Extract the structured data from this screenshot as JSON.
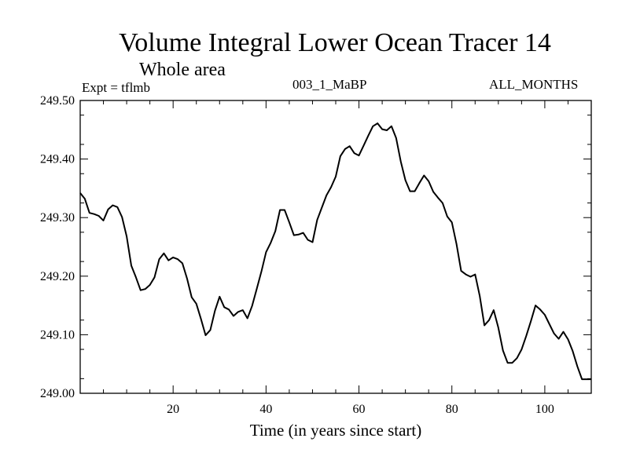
{
  "chart_data": {
    "type": "line",
    "title": "Volume Integral Lower Ocean Tracer 14",
    "subtitle": "Whole area",
    "expt_label": "Expt = tflmb",
    "run_label": "003_1_MaBP",
    "months_label": "ALL_MONTHS",
    "xlabel": "Time (in years since start)",
    "ylabel": "",
    "xlim": [
      0,
      110
    ],
    "ylim": [
      249.0,
      249.5
    ],
    "xticks": [
      20,
      40,
      60,
      80,
      100
    ],
    "yticks": [
      249.0,
      249.1,
      249.2,
      249.3,
      249.4,
      249.5
    ],
    "ytick_labels": [
      "249.00",
      "249.10",
      "249.20",
      "249.30",
      "249.40",
      "249.50"
    ],
    "grid": false,
    "series": [
      {
        "name": "tflmb",
        "x": [
          0,
          1,
          2,
          3,
          4,
          5,
          6,
          7,
          8,
          9,
          10,
          11,
          12,
          13,
          14,
          15,
          16,
          17,
          18,
          19,
          20,
          21,
          22,
          23,
          24,
          25,
          26,
          27,
          28,
          29,
          30,
          31,
          32,
          33,
          34,
          35,
          36,
          37,
          38,
          39,
          40,
          41,
          42,
          43,
          44,
          45,
          46,
          47,
          48,
          49,
          50,
          51,
          52,
          53,
          54,
          55,
          56,
          57,
          58,
          59,
          60,
          61,
          62,
          63,
          64,
          65,
          66,
          67,
          68,
          69,
          70,
          71,
          72,
          73,
          74,
          75,
          76,
          77,
          78,
          79,
          80,
          81,
          82,
          83,
          84,
          85,
          86,
          87,
          88,
          89,
          90,
          91,
          92,
          93,
          94,
          95,
          96,
          97,
          98,
          99,
          100,
          101,
          102,
          103,
          104,
          105,
          106,
          107,
          108,
          109,
          110
        ],
        "values": [
          249.342,
          249.332,
          249.308,
          249.306,
          249.303,
          249.295,
          249.314,
          249.321,
          249.318,
          249.301,
          249.268,
          249.218,
          249.198,
          249.176,
          249.178,
          249.185,
          249.198,
          249.229,
          249.239,
          249.227,
          249.232,
          249.229,
          249.222,
          249.196,
          249.164,
          249.153,
          249.127,
          249.099,
          249.108,
          249.141,
          249.165,
          249.147,
          249.143,
          249.132,
          249.139,
          249.142,
          249.128,
          249.149,
          249.178,
          249.208,
          249.241,
          249.257,
          249.277,
          249.313,
          249.313,
          249.292,
          249.27,
          249.271,
          249.274,
          249.262,
          249.258,
          249.296,
          249.317,
          249.338,
          249.352,
          249.37,
          249.405,
          249.417,
          249.422,
          249.41,
          249.406,
          249.423,
          249.44,
          249.456,
          249.461,
          249.451,
          249.449,
          249.456,
          249.436,
          249.396,
          249.364,
          249.345,
          249.345,
          249.359,
          249.372,
          249.362,
          249.344,
          249.334,
          249.325,
          249.302,
          249.292,
          249.255,
          249.209,
          249.203,
          249.199,
          249.203,
          249.166,
          249.116,
          249.125,
          249.142,
          249.112,
          249.073,
          249.052,
          249.052,
          249.06,
          249.075,
          249.098,
          249.123,
          249.15,
          249.143,
          249.134,
          249.118,
          249.102,
          249.093,
          249.105,
          249.092,
          249.072,
          249.046,
          249.024,
          249.024,
          249.024
        ]
      }
    ]
  }
}
